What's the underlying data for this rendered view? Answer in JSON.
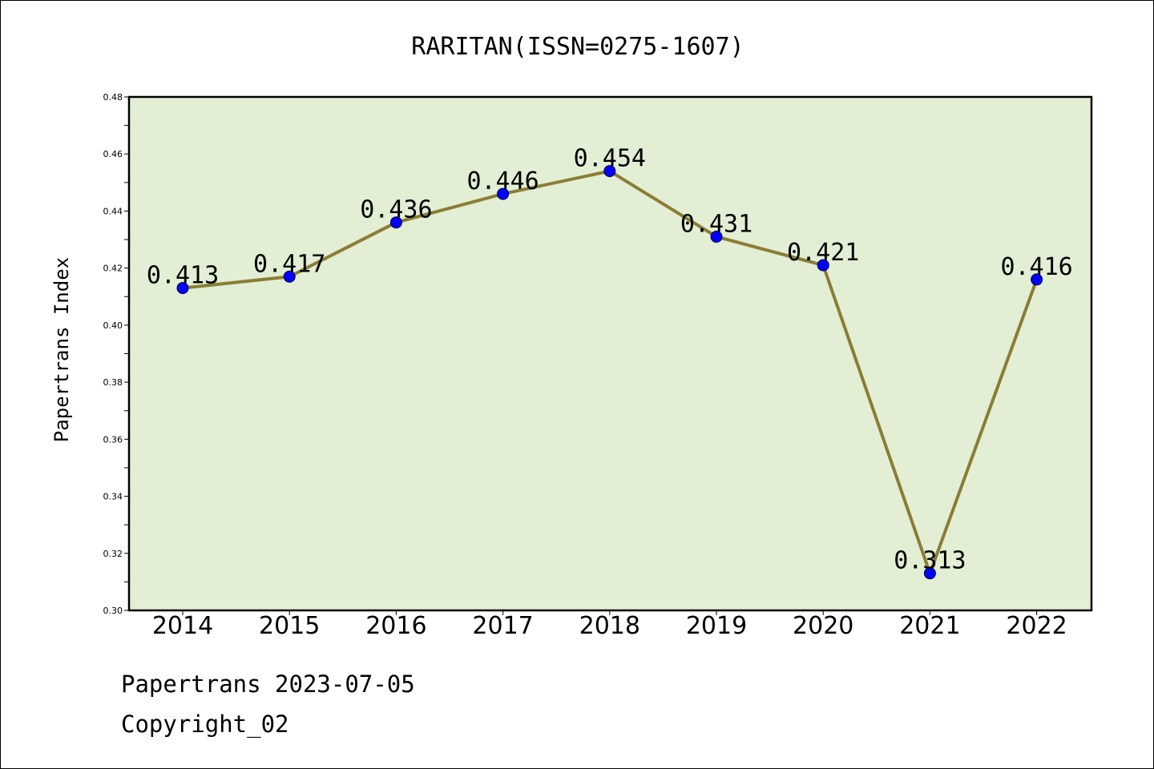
{
  "chart_data": {
    "type": "line",
    "title": "RARITAN(ISSN=0275-1607)",
    "xlabel": "",
    "ylabel": "Papertrans Index",
    "categories": [
      "2014",
      "2015",
      "2016",
      "2017",
      "2018",
      "2019",
      "2020",
      "2021",
      "2022"
    ],
    "series": [
      {
        "values": [
          0.413,
          0.417,
          0.436,
          0.446,
          0.454,
          0.431,
          0.421,
          0.313,
          0.416
        ],
        "labels": [
          "0.413",
          "0.417",
          "0.436",
          "0.446",
          "0.454",
          "0.431",
          "0.421",
          "0.313",
          "0.416"
        ]
      }
    ],
    "ylim": [
      0.3,
      0.48
    ],
    "yticks": [
      "0.30",
      "0.32",
      "0.34",
      "0.36",
      "0.38",
      "0.40",
      "0.42",
      "0.44",
      "0.46",
      "0.48"
    ],
    "grid": false,
    "legend": "none",
    "colors": {
      "plot_background": "#e2efd5",
      "line": "#8b7d35",
      "marker": "#0000ff",
      "axes": "#000000"
    }
  },
  "footer": {
    "line1": "Papertrans 2023-07-05",
    "line2": "Copyright_02"
  }
}
